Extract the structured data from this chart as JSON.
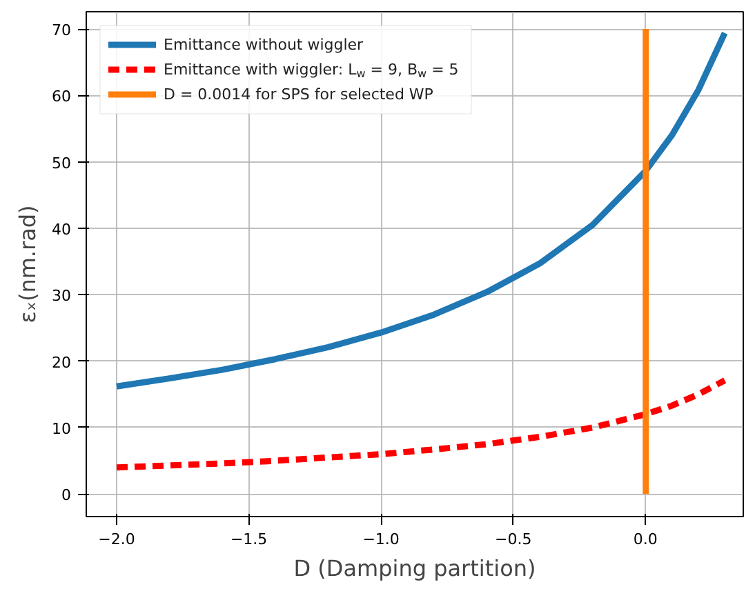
{
  "chart_data": {
    "type": "line",
    "xlabel": "D (Damping partition)",
    "ylabel": "εₓ(nm.rad)",
    "xlim": [
      -2.115,
      0.37
    ],
    "ylim": [
      -3.4,
      72.6
    ],
    "xticks": [
      {
        "value": -2.0,
        "label": "−2.0"
      },
      {
        "value": -1.5,
        "label": "−1.5"
      },
      {
        "value": -1.0,
        "label": "−1.0"
      },
      {
        "value": -0.5,
        "label": "−0.5"
      },
      {
        "value": 0.0,
        "label": "0.0"
      }
    ],
    "yticks": [
      0,
      10,
      20,
      30,
      40,
      50,
      60,
      70
    ],
    "grid": true,
    "legend": "top left",
    "series": [
      {
        "name": "Emittance without wiggler",
        "color": "#1f77b4",
        "line_style": "solid",
        "x": [
          -2.0,
          -1.8,
          -1.6,
          -1.4,
          -1.2,
          -1.0,
          -0.8,
          -0.6,
          -0.4,
          -0.2,
          0.0,
          0.1,
          0.2,
          0.3
        ],
        "values": [
          16.2,
          17.4,
          18.7,
          20.3,
          22.1,
          24.3,
          27.0,
          30.4,
          34.7,
          40.5,
          48.6,
          54.0,
          60.8,
          69.4
        ]
      },
      {
        "name": "Emittance with wiggler: L$_{w}$ = 9, B$_{w}$ = 5",
        "color": "#ff0000",
        "line_style": "dashed",
        "x": [
          -2.0,
          -1.8,
          -1.6,
          -1.4,
          -1.2,
          -1.0,
          -0.8,
          -0.6,
          -0.4,
          -0.2,
          0.0,
          0.1,
          0.2,
          0.3
        ],
        "values": [
          4.0,
          4.3,
          4.6,
          5.0,
          5.5,
          6.0,
          6.7,
          7.5,
          8.6,
          10.0,
          12.0,
          13.3,
          15.0,
          17.1
        ]
      },
      {
        "name": "D = 0.0014 for SPS for selected WP",
        "color": "#ff7f0e",
        "line_style": "solid",
        "x": [
          0.0014,
          0.0014
        ],
        "values": [
          0,
          70
        ]
      }
    ]
  }
}
